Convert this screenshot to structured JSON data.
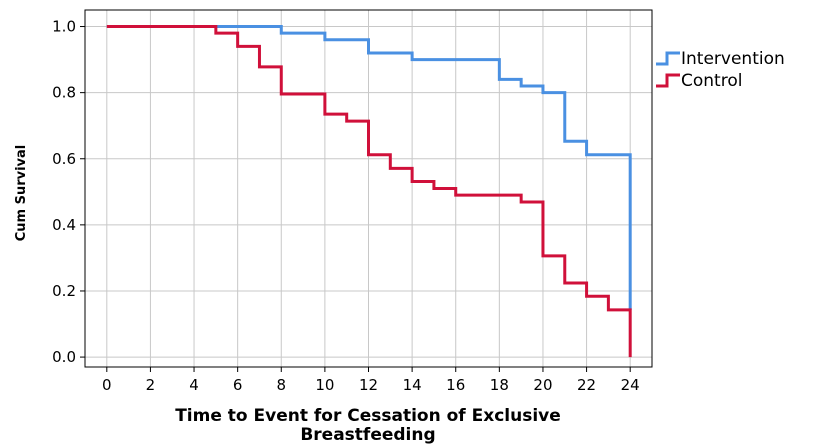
{
  "chart_data": {
    "type": "line",
    "xlabel": "Time to Event for Cessation of Exclusive Breastfeeding",
    "ylabel": "Cum Survival",
    "xlim": [
      -1,
      25
    ],
    "ylim": [
      -0.03,
      1.05
    ],
    "x_ticks": [
      0,
      2,
      4,
      6,
      8,
      10,
      12,
      14,
      16,
      18,
      20,
      22,
      24
    ],
    "y_ticks": [
      0.0,
      0.2,
      0.4,
      0.6,
      0.8,
      1.0
    ],
    "y_tick_labels": [
      "0.0",
      "0.2",
      "0.4",
      "0.6",
      "0.8",
      "1.0"
    ],
    "grid": true,
    "step": true,
    "legend_position": "right",
    "series": [
      {
        "name": "Intervention",
        "color": "#4a90e2",
        "x": [
          0,
          8,
          10,
          12,
          14,
          18,
          19,
          20,
          21,
          22,
          24
        ],
        "y": [
          1.0,
          0.98,
          0.96,
          0.92,
          0.9,
          0.84,
          0.82,
          0.8,
          0.653,
          0.612,
          0.143
        ]
      },
      {
        "name": "Control",
        "color": "#d0103a",
        "x": [
          0,
          5,
          6,
          7,
          8,
          10,
          11,
          12,
          13,
          14,
          15,
          16,
          19,
          20,
          21,
          22,
          23,
          24
        ],
        "y": [
          1.0,
          0.98,
          0.94,
          0.878,
          0.796,
          0.735,
          0.714,
          0.612,
          0.571,
          0.531,
          0.51,
          0.49,
          0.469,
          0.306,
          0.224,
          0.184,
          0.143,
          0.0
        ]
      }
    ]
  }
}
